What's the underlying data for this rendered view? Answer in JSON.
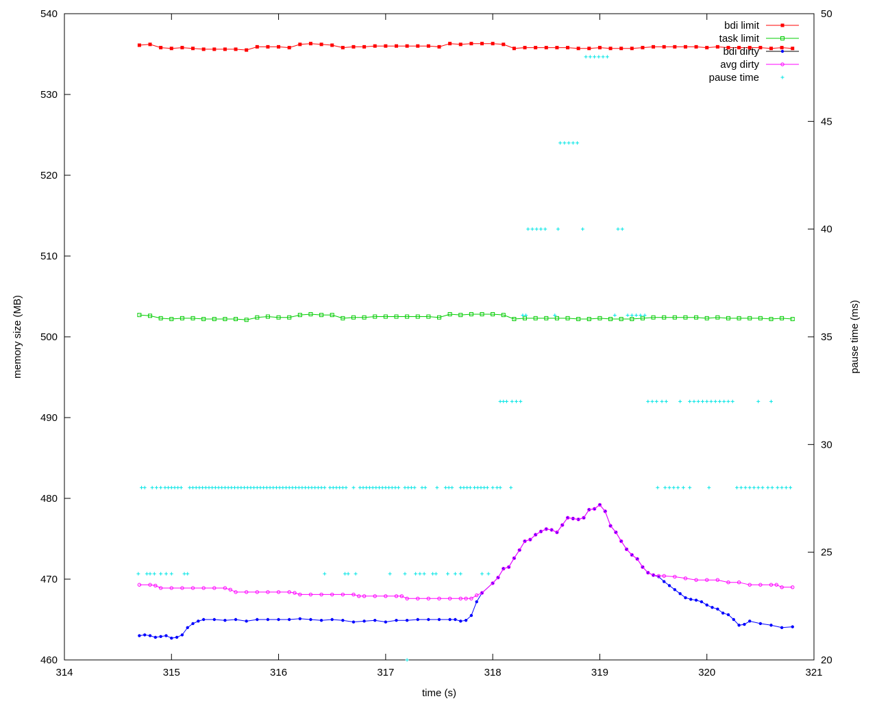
{
  "chart_data": {
    "type": "line",
    "xlabel": "time (s)",
    "ylabel": "memory size (MB)",
    "y2label": "pause time (ms)",
    "xlim": [
      314,
      321
    ],
    "ylim": [
      460,
      540
    ],
    "y2lim": [
      20,
      50
    ],
    "xticks": [
      "314",
      "315",
      "316",
      "317",
      "318",
      "319",
      "320",
      "321"
    ],
    "yticks": [
      "460",
      "470",
      "480",
      "490",
      "500",
      "510",
      "520",
      "530",
      "540"
    ],
    "y2ticks": [
      "20",
      "25",
      "30",
      "35",
      "40",
      "45",
      "50"
    ],
    "grid": false,
    "legend_position": "top-right",
    "series": [
      {
        "name": "bdi limit",
        "axis": "y1",
        "color": "#ff0000",
        "marker": "square-filled",
        "x": [
          314.7,
          314.8,
          314.9,
          315.0,
          315.1,
          315.2,
          315.3,
          315.4,
          315.5,
          315.6,
          315.7,
          315.8,
          315.9,
          316.0,
          316.1,
          316.2,
          316.3,
          316.4,
          316.5,
          316.6,
          316.7,
          316.8,
          316.9,
          317.0,
          317.1,
          317.2,
          317.3,
          317.4,
          317.5,
          317.6,
          317.7,
          317.8,
          317.9,
          318.0,
          318.1,
          318.2,
          318.3,
          318.4,
          318.5,
          318.6,
          318.7,
          318.8,
          318.9,
          319.0,
          319.1,
          319.2,
          319.3,
          319.4,
          319.5,
          319.6,
          319.7,
          319.8,
          319.9,
          320.0,
          320.1,
          320.2,
          320.3,
          320.4,
          320.5,
          320.6,
          320.7,
          320.8
        ],
        "y": [
          536.1,
          536.2,
          535.8,
          535.7,
          535.8,
          535.7,
          535.6,
          535.6,
          535.6,
          535.6,
          535.5,
          535.9,
          535.9,
          535.9,
          535.8,
          536.2,
          536.3,
          536.2,
          536.1,
          535.8,
          535.9,
          535.9,
          536.0,
          536.0,
          536.0,
          536.0,
          536.0,
          536.0,
          535.9,
          536.3,
          536.2,
          536.3,
          536.3,
          536.3,
          536.2,
          535.7,
          535.8,
          535.8,
          535.8,
          535.8,
          535.8,
          535.7,
          535.7,
          535.8,
          535.7,
          535.7,
          535.7,
          535.8,
          535.9,
          535.9,
          535.9,
          535.9,
          535.9,
          535.8,
          535.9,
          535.8,
          535.8,
          535.8,
          535.8,
          535.7,
          535.8,
          535.7
        ]
      },
      {
        "name": "task limit",
        "axis": "y1",
        "color": "#00cc00",
        "marker": "square-open",
        "x": [
          314.7,
          314.8,
          314.9,
          315.0,
          315.1,
          315.2,
          315.3,
          315.4,
          315.5,
          315.6,
          315.7,
          315.8,
          315.9,
          316.0,
          316.1,
          316.2,
          316.3,
          316.4,
          316.5,
          316.6,
          316.7,
          316.8,
          316.9,
          317.0,
          317.1,
          317.2,
          317.3,
          317.4,
          317.5,
          317.6,
          317.7,
          317.8,
          317.9,
          318.0,
          318.1,
          318.2,
          318.3,
          318.4,
          318.5,
          318.6,
          318.7,
          318.8,
          318.9,
          319.0,
          319.1,
          319.2,
          319.3,
          319.4,
          319.5,
          319.6,
          319.7,
          319.8,
          319.9,
          320.0,
          320.1,
          320.2,
          320.3,
          320.4,
          320.5,
          320.6,
          320.7,
          320.8
        ],
        "y": [
          502.7,
          502.6,
          502.3,
          502.2,
          502.3,
          502.3,
          502.2,
          502.2,
          502.2,
          502.2,
          502.1,
          502.4,
          502.5,
          502.4,
          502.4,
          502.7,
          502.8,
          502.7,
          502.7,
          502.3,
          502.4,
          502.4,
          502.5,
          502.5,
          502.5,
          502.5,
          502.5,
          502.5,
          502.4,
          502.8,
          502.7,
          502.8,
          502.8,
          502.8,
          502.7,
          502.2,
          502.3,
          502.3,
          502.3,
          502.3,
          502.3,
          502.2,
          502.2,
          502.3,
          502.2,
          502.2,
          502.2,
          502.3,
          502.4,
          502.4,
          502.4,
          502.4,
          502.4,
          502.3,
          502.4,
          502.3,
          502.3,
          502.3,
          502.3,
          502.2,
          502.3,
          502.2
        ]
      },
      {
        "name": "bdi dirty",
        "axis": "y1",
        "color": "#0000ff",
        "marker": "circle-filled",
        "x": [
          314.7,
          314.75,
          314.8,
          314.85,
          314.9,
          314.95,
          315.0,
          315.05,
          315.1,
          315.15,
          315.2,
          315.25,
          315.3,
          315.4,
          315.5,
          315.6,
          315.7,
          315.8,
          315.9,
          316.0,
          316.1,
          316.2,
          316.3,
          316.4,
          316.5,
          316.6,
          316.7,
          316.8,
          316.9,
          317.0,
          317.1,
          317.2,
          317.3,
          317.4,
          317.5,
          317.6,
          317.65,
          317.7,
          317.75,
          317.8,
          317.85,
          317.9,
          318.0,
          318.05,
          318.1,
          318.15,
          318.2,
          318.25,
          318.3,
          318.35,
          318.4,
          318.45,
          318.5,
          318.55,
          318.6,
          318.65,
          318.7,
          318.75,
          318.8,
          318.85,
          318.9,
          318.95,
          319.0,
          319.05,
          319.1,
          319.15,
          319.2,
          319.25,
          319.3,
          319.35,
          319.4,
          319.45,
          319.5,
          319.55,
          319.6,
          319.65,
          319.7,
          319.75,
          319.8,
          319.85,
          319.9,
          319.95,
          320.0,
          320.05,
          320.1,
          320.15,
          320.2,
          320.25,
          320.3,
          320.35,
          320.4,
          320.5,
          320.6,
          320.7,
          320.8
        ],
        "y": [
          463.0,
          463.1,
          463.0,
          462.8,
          462.9,
          463.0,
          462.7,
          462.8,
          463.1,
          464.0,
          464.5,
          464.8,
          465.0,
          465.0,
          464.9,
          465.0,
          464.8,
          465.0,
          465.0,
          465.0,
          465.0,
          465.1,
          465.0,
          464.9,
          465.0,
          464.9,
          464.7,
          464.8,
          464.9,
          464.7,
          464.9,
          464.9,
          465.0,
          465.0,
          465.0,
          465.0,
          465.0,
          464.8,
          464.9,
          465.5,
          467.2,
          468.3,
          469.5,
          470.2,
          471.3,
          471.5,
          472.6,
          473.6,
          474.7,
          474.9,
          475.5,
          475.9,
          476.2,
          476.1,
          475.8,
          476.7,
          477.6,
          477.5,
          477.4,
          477.6,
          478.6,
          478.7,
          479.2,
          478.4,
          476.6,
          475.8,
          474.7,
          473.7,
          473.0,
          472.5,
          471.5,
          470.8,
          470.5,
          470.3,
          469.7,
          469.2,
          468.7,
          468.2,
          467.7,
          467.5,
          467.4,
          467.2,
          466.8,
          466.5,
          466.3,
          465.8,
          465.6,
          465.0,
          464.3,
          464.4,
          464.8,
          464.5,
          464.3,
          464.0,
          464.1
        ]
      },
      {
        "name": "avg dirty",
        "axis": "y1",
        "color": "#ff00ff",
        "marker": "circle-open",
        "x": [
          314.7,
          314.8,
          314.85,
          314.9,
          315.0,
          315.1,
          315.2,
          315.3,
          315.4,
          315.5,
          315.55,
          315.6,
          315.7,
          315.8,
          315.9,
          316.0,
          316.1,
          316.15,
          316.2,
          316.3,
          316.4,
          316.5,
          316.6,
          316.7,
          316.75,
          316.8,
          316.9,
          317.0,
          317.1,
          317.15,
          317.2,
          317.3,
          317.4,
          317.5,
          317.6,
          317.7,
          317.75,
          317.8,
          317.85,
          317.9,
          318.0,
          318.05,
          318.1,
          318.15,
          318.2,
          318.25,
          318.3,
          318.35,
          318.4,
          318.45,
          318.5,
          318.55,
          318.6,
          318.65,
          318.7,
          318.75,
          318.8,
          318.85,
          318.9,
          318.95,
          319.0,
          319.05,
          319.1,
          319.15,
          319.2,
          319.25,
          319.3,
          319.35,
          319.4,
          319.45,
          319.5,
          319.55,
          319.6,
          319.7,
          319.8,
          319.9,
          320.0,
          320.1,
          320.2,
          320.3,
          320.4,
          320.5,
          320.6,
          320.65,
          320.7,
          320.8
        ],
        "y": [
          469.3,
          469.3,
          469.2,
          468.9,
          468.9,
          468.9,
          468.9,
          468.9,
          468.9,
          468.9,
          468.7,
          468.4,
          468.4,
          468.4,
          468.4,
          468.4,
          468.4,
          468.3,
          468.1,
          468.1,
          468.1,
          468.1,
          468.1,
          468.1,
          467.9,
          467.9,
          467.9,
          467.9,
          467.9,
          467.9,
          467.6,
          467.6,
          467.6,
          467.6,
          467.6,
          467.6,
          467.6,
          467.6,
          468.0,
          468.3,
          469.5,
          470.2,
          471.3,
          471.5,
          472.6,
          473.6,
          474.7,
          474.9,
          475.5,
          475.9,
          476.2,
          476.1,
          475.8,
          476.7,
          477.6,
          477.5,
          477.4,
          477.6,
          478.6,
          478.7,
          479.2,
          478.4,
          476.6,
          475.8,
          474.7,
          473.7,
          473.0,
          472.5,
          471.5,
          470.8,
          470.5,
          470.4,
          470.4,
          470.3,
          470.1,
          469.9,
          469.9,
          469.9,
          469.6,
          469.6,
          469.3,
          469.3,
          469.3,
          469.3,
          469.0,
          469.0
        ]
      },
      {
        "name": "pause time",
        "axis": "y2",
        "color": "#00e5e5",
        "marker": "plus",
        "x": [
          314.72,
          314.75,
          314.82,
          314.86,
          314.9,
          314.94,
          314.97,
          315.0,
          315.03,
          315.06,
          315.09,
          315.17,
          315.2,
          315.23,
          315.26,
          315.29,
          315.32,
          315.35,
          315.38,
          315.41,
          315.44,
          315.47,
          315.5,
          315.53,
          315.56,
          315.59,
          315.62,
          315.65,
          315.68,
          315.71,
          315.74,
          315.77,
          315.8,
          315.83,
          315.86,
          315.89,
          315.92,
          315.95,
          315.98,
          316.01,
          316.04,
          316.07,
          316.1,
          316.13,
          316.16,
          316.19,
          316.22,
          316.25,
          316.28,
          316.31,
          316.34,
          316.37,
          316.4,
          316.43,
          316.48,
          316.51,
          316.54,
          316.57,
          316.6,
          316.63,
          316.7,
          316.76,
          316.79,
          316.82,
          316.85,
          316.88,
          316.91,
          316.94,
          316.97,
          317.0,
          317.03,
          317.06,
          317.09,
          317.12,
          317.18,
          317.21,
          317.24,
          317.27,
          317.34,
          317.37,
          317.48,
          317.56,
          317.59,
          317.62,
          317.7,
          317.73,
          317.76,
          317.79,
          317.83,
          317.86,
          317.89,
          317.92,
          317.95,
          318.0,
          318.04,
          318.07,
          318.17,
          314.69,
          314.77,
          314.8,
          314.84,
          314.9,
          314.95,
          315.0,
          315.12,
          315.15,
          316.43,
          316.62,
          316.65,
          316.72,
          317.04,
          317.18,
          317.28,
          317.32,
          317.36,
          317.44,
          317.47,
          317.58,
          317.65,
          317.7,
          317.9,
          317.96,
          318.07,
          318.1,
          318.13,
          318.18,
          318.22,
          318.26,
          319.45,
          319.49,
          319.53,
          319.58,
          319.62,
          319.75,
          319.84,
          319.88,
          319.92,
          319.96,
          320.0,
          320.04,
          320.08,
          320.12,
          320.16,
          320.2,
          320.24,
          320.48,
          320.6,
          319.54,
          319.61,
          319.65,
          319.69,
          319.73,
          319.78,
          319.84,
          320.02,
          320.28,
          320.32,
          320.36,
          320.4,
          320.44,
          320.48,
          320.52,
          320.57,
          320.61,
          320.66,
          320.7,
          320.74,
          320.78,
          318.33,
          318.37,
          318.41,
          318.45,
          318.49,
          318.61,
          318.84,
          319.17,
          319.21,
          318.63,
          318.67,
          318.71,
          318.75,
          318.79,
          318.87,
          318.91,
          318.95,
          318.99,
          319.03,
          319.07,
          318.28,
          318.31,
          318.58,
          319.14,
          319.26,
          319.3,
          319.34,
          319.38,
          319.42,
          317.2
        ],
        "y": [
          28.0,
          28.0,
          28.0,
          28.0,
          28.0,
          28.0,
          28.0,
          28.0,
          28.0,
          28.0,
          28.0,
          28.0,
          28.0,
          28.0,
          28.0,
          28.0,
          28.0,
          28.0,
          28.0,
          28.0,
          28.0,
          28.0,
          28.0,
          28.0,
          28.0,
          28.0,
          28.0,
          28.0,
          28.0,
          28.0,
          28.0,
          28.0,
          28.0,
          28.0,
          28.0,
          28.0,
          28.0,
          28.0,
          28.0,
          28.0,
          28.0,
          28.0,
          28.0,
          28.0,
          28.0,
          28.0,
          28.0,
          28.0,
          28.0,
          28.0,
          28.0,
          28.0,
          28.0,
          28.0,
          28.0,
          28.0,
          28.0,
          28.0,
          28.0,
          28.0,
          28.0,
          28.0,
          28.0,
          28.0,
          28.0,
          28.0,
          28.0,
          28.0,
          28.0,
          28.0,
          28.0,
          28.0,
          28.0,
          28.0,
          28.0,
          28.0,
          28.0,
          28.0,
          28.0,
          28.0,
          28.0,
          28.0,
          28.0,
          28.0,
          28.0,
          28.0,
          28.0,
          28.0,
          28.0,
          28.0,
          28.0,
          28.0,
          28.0,
          28.0,
          28.0,
          28.0,
          28.0,
          24.0,
          24.0,
          24.0,
          24.0,
          24.0,
          24.0,
          24.0,
          24.0,
          24.0,
          24.0,
          24.0,
          24.0,
          24.0,
          24.0,
          24.0,
          24.0,
          24.0,
          24.0,
          24.0,
          24.0,
          24.0,
          24.0,
          24.0,
          24.0,
          24.0,
          32.0,
          32.0,
          32.0,
          32.0,
          32.0,
          32.0,
          32.0,
          32.0,
          32.0,
          32.0,
          32.0,
          32.0,
          32.0,
          32.0,
          32.0,
          32.0,
          32.0,
          32.0,
          32.0,
          32.0,
          32.0,
          32.0,
          32.0,
          32.0,
          32.0,
          28.0,
          28.0,
          28.0,
          28.0,
          28.0,
          28.0,
          28.0,
          28.0,
          28.0,
          28.0,
          28.0,
          28.0,
          28.0,
          28.0,
          28.0,
          28.0,
          28.0,
          28.0,
          28.0,
          28.0,
          28.0,
          40.0,
          40.0,
          40.0,
          40.0,
          40.0,
          40.0,
          40.0,
          40.0,
          40.0,
          44.0,
          44.0,
          44.0,
          44.0,
          44.0,
          48.0,
          48.0,
          48.0,
          48.0,
          48.0,
          48.0,
          36.0,
          36.0,
          36.0,
          36.0,
          36.0,
          36.0,
          36.0,
          36.0,
          36.0,
          20.0
        ]
      }
    ]
  }
}
